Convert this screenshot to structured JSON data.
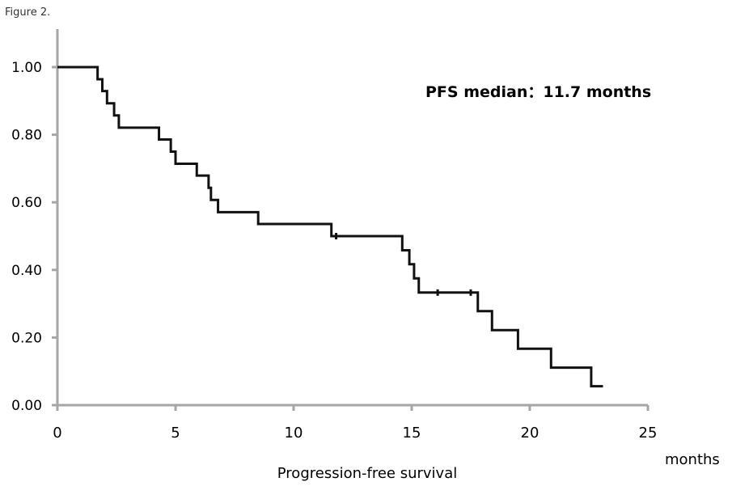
{
  "figure_label": "Figure 2.",
  "chart_data": {
    "type": "line",
    "step": true,
    "title": "",
    "annotation": "PFS median：11.7 months",
    "xlabel": "Progression-free survival",
    "x_unit_label": "months",
    "ylabel": "",
    "xlim": [
      0,
      25
    ],
    "ylim": [
      0.0,
      1.0
    ],
    "xticks": [
      0,
      5,
      10,
      15,
      20,
      25
    ],
    "yticks": [
      0.0,
      0.2,
      0.4,
      0.6,
      0.8,
      1.0
    ],
    "xtick_labels": [
      "0",
      "5",
      "10",
      "15",
      "20",
      "25"
    ],
    "ytick_labels": [
      "0.00",
      "0.20",
      "0.40",
      "0.60",
      "0.80",
      "1.00"
    ],
    "grid": false,
    "series": [
      {
        "points": [
          [
            0,
            1.0
          ],
          [
            1.7,
            0.964
          ],
          [
            1.9,
            0.929
          ],
          [
            2.1,
            0.893
          ],
          [
            2.4,
            0.857
          ],
          [
            2.6,
            0.821
          ],
          [
            4.3,
            0.786
          ],
          [
            4.8,
            0.75
          ],
          [
            5.0,
            0.714
          ],
          [
            5.9,
            0.679
          ],
          [
            6.4,
            0.643
          ],
          [
            6.5,
            0.607
          ],
          [
            6.8,
            0.571
          ],
          [
            8.5,
            0.536
          ],
          [
            11.6,
            0.5
          ],
          [
            14.6,
            0.458
          ],
          [
            14.9,
            0.417
          ],
          [
            15.1,
            0.375
          ],
          [
            15.3,
            0.333
          ],
          [
            17.8,
            0.278
          ],
          [
            18.4,
            0.222
          ],
          [
            19.5,
            0.167
          ],
          [
            20.9,
            0.111
          ],
          [
            22.6,
            0.056
          ],
          [
            23.1,
            0.056
          ]
        ],
        "censored": [
          [
            11.8,
            0.5
          ],
          [
            16.1,
            0.333
          ],
          [
            17.5,
            0.333
          ]
        ],
        "color": "#111111"
      }
    ]
  }
}
